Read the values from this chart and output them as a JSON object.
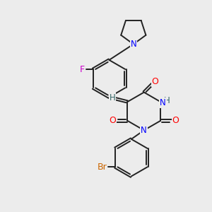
{
  "bg_color": "#ececec",
  "bond_color": "#222222",
  "bond_width": 1.4,
  "dbo": 0.055,
  "figsize": [
    3.0,
    3.0
  ],
  "dpi": 100,
  "xlim": [
    0,
    10
  ],
  "ylim": [
    0,
    10
  ]
}
